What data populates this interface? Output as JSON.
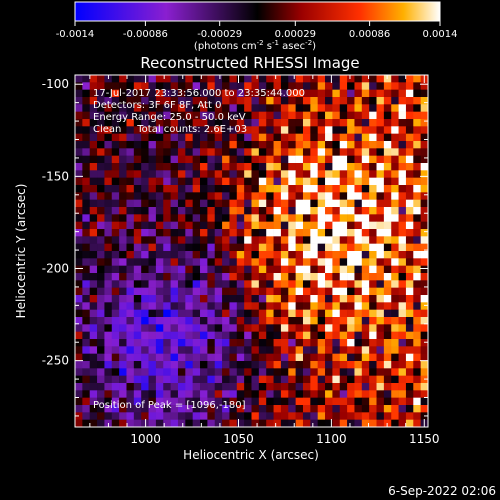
{
  "chart_data": {
    "type": "heatmap",
    "title": "Reconstructed RHESSI Image",
    "xlabel": "Heliocentric X (arcsec)",
    "ylabel": "Heliocentric Y (arcsec)",
    "xlim": [
      962,
      1152
    ],
    "ylim": [
      -286,
      -95
    ],
    "x_ticks": [
      1000,
      1050,
      1100,
      1150
    ],
    "y_ticks": [
      -100,
      -150,
      -200,
      -250
    ],
    "colorbar": {
      "range": [
        -0.0014,
        0.0014
      ],
      "tick_labels": [
        "-0.0014",
        "-0.00086",
        "-0.00029",
        "0.00029",
        "0.00086",
        "0.0014"
      ],
      "tick_values": [
        -0.0014,
        -0.00086,
        -0.00029,
        0.00029,
        0.00086,
        0.0014
      ],
      "unit_label": "(photons cm",
      "unit_exp1": "-2",
      "unit_mid1": " s",
      "unit_exp2": "-1",
      "unit_mid2": " asec",
      "unit_exp3": "-2",
      "unit_end": ")",
      "colormap": "rhessi-bluered"
    },
    "annotations": [
      "17-Jul-2017 23:33:56.000 to 23:35:44.000",
      "Detectors: 3F 6F 8F, Att 0",
      "Energy Range: 25.0 - 50.0 keV",
      "Clean     Total counts: 2.6E+03"
    ],
    "peak_label": "Position of Peak = [1096,-180]",
    "peak": [
      1096,
      -180
    ],
    "grid": false
  },
  "footer": {
    "date": "6-Sep-2022 02:06"
  }
}
